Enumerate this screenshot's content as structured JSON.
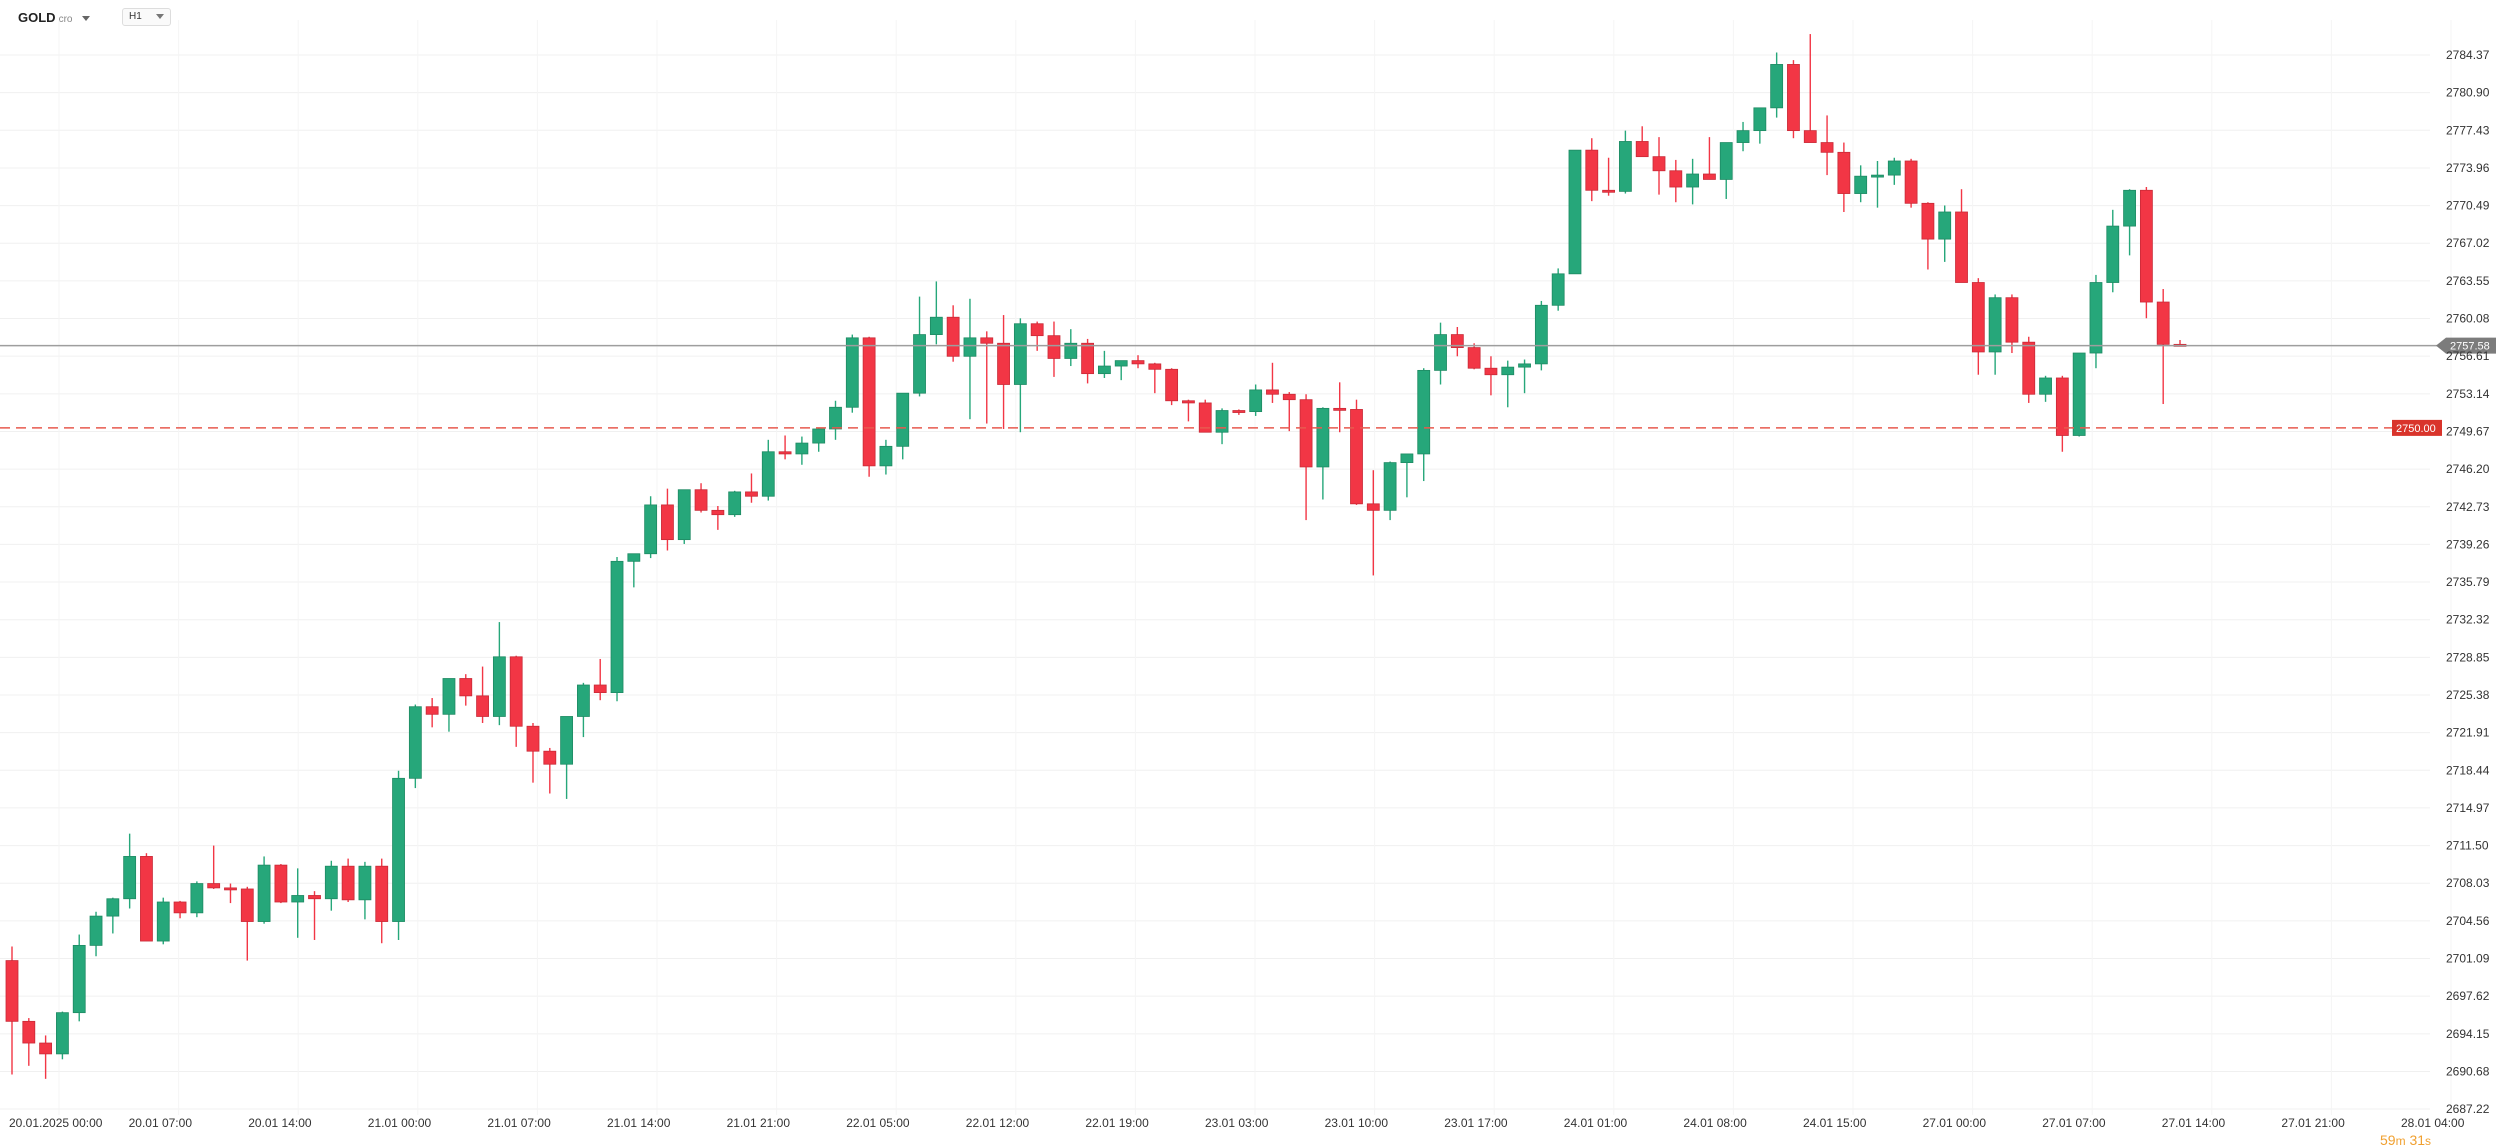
{
  "toolbar": {
    "symbol": "GOLD",
    "symbol_suffix": "cro",
    "timeframe": "H1"
  },
  "countdown": {
    "minutes": "59",
    "m": "m",
    "seconds": "31",
    "s": "s"
  },
  "price_tags": {
    "current": "2757.58",
    "order": "2750.00"
  },
  "colors": {
    "up": "#26a77a",
    "down": "#f23645",
    "grid": "#f0f0f0",
    "current_line": "#9e9e9e",
    "order_line": "#e85a4f",
    "order_tag": "#d9342b",
    "current_tag": "#7c7c7c",
    "countdown": "#f0a030"
  },
  "chart_data": {
    "type": "candlestick",
    "symbol": "GOLD",
    "timeframe": "H1",
    "y_ticks": [
      "2784.37",
      "2780.90",
      "2777.43",
      "2773.96",
      "2770.49",
      "2767.02",
      "2763.55",
      "2760.08",
      "2756.61",
      "2753.14",
      "2749.67",
      "2746.20",
      "2742.73",
      "2739.26",
      "2735.79",
      "2732.32",
      "2728.85",
      "2725.38",
      "2721.91",
      "2718.44",
      "2714.97",
      "2711.50",
      "2708.03",
      "2704.56",
      "2701.09",
      "2697.62",
      "2694.15",
      "2690.68",
      "2687.22"
    ],
    "ylim": [
      2687.22,
      2784.37
    ],
    "x_ticks": [
      "20.01.2025  00:00",
      "20.01  07:00",
      "20.01  14:00",
      "21.01  00:00",
      "21.01  07:00",
      "21.01  14:00",
      "21.01  21:00",
      "22.01  05:00",
      "22.01  12:00",
      "22.01  19:00",
      "23.01  03:00",
      "23.01  10:00",
      "23.01  17:00",
      "24.01  01:00",
      "24.01  08:00",
      "24.01  15:00",
      "27.01  00:00",
      "27.01  07:00",
      "27.01  14:00",
      "27.01  21:00",
      "28.01  04:00"
    ],
    "current_price": 2757.58,
    "order_level": 2750.0,
    "candles": [
      [
        2700.9,
        2702.2,
        2690.4,
        2695.3
      ],
      [
        2695.3,
        2695.6,
        2691.2,
        2693.3
      ],
      [
        2693.3,
        2694.0,
        2690.0,
        2692.3
      ],
      [
        2692.3,
        2696.2,
        2691.8,
        2696.1
      ],
      [
        2696.1,
        2703.3,
        2695.3,
        2702.3
      ],
      [
        2702.3,
        2705.4,
        2701.3,
        2705.0
      ],
      [
        2705.0,
        2706.7,
        2703.4,
        2706.6
      ],
      [
        2706.6,
        2712.6,
        2705.7,
        2710.5
      ],
      [
        2710.5,
        2710.8,
        2702.7,
        2702.7
      ],
      [
        2702.7,
        2706.7,
        2702.4,
        2706.3
      ],
      [
        2706.3,
        2706.4,
        2704.8,
        2705.3
      ],
      [
        2705.3,
        2708.2,
        2704.9,
        2708.0
      ],
      [
        2708.0,
        2711.5,
        2707.5,
        2707.6
      ],
      [
        2707.6,
        2708.0,
        2706.2,
        2707.5
      ],
      [
        2707.5,
        2707.7,
        2700.9,
        2704.5
      ],
      [
        2704.5,
        2710.5,
        2704.3,
        2709.7
      ],
      [
        2709.7,
        2709.8,
        2706.2,
        2706.3
      ],
      [
        2706.3,
        2709.4,
        2703.0,
        2706.9
      ],
      [
        2706.9,
        2707.3,
        2702.8,
        2706.6
      ],
      [
        2706.6,
        2710.1,
        2705.5,
        2709.6
      ],
      [
        2709.6,
        2710.3,
        2706.3,
        2706.5
      ],
      [
        2706.5,
        2710.0,
        2704.7,
        2709.6
      ],
      [
        2709.6,
        2710.3,
        2702.5,
        2704.5
      ],
      [
        2704.5,
        2718.4,
        2702.8,
        2717.7
      ],
      [
        2717.7,
        2724.5,
        2716.8,
        2724.3
      ],
      [
        2724.3,
        2725.1,
        2722.4,
        2723.6
      ],
      [
        2723.6,
        2726.9,
        2722.0,
        2726.9
      ],
      [
        2726.9,
        2727.3,
        2724.4,
        2725.3
      ],
      [
        2725.3,
        2728.0,
        2722.8,
        2723.4
      ],
      [
        2723.4,
        2732.1,
        2722.6,
        2728.9
      ],
      [
        2728.9,
        2729.0,
        2720.6,
        2722.5
      ],
      [
        2722.5,
        2722.8,
        2717.3,
        2720.2
      ],
      [
        2720.2,
        2720.5,
        2716.3,
        2719.0
      ],
      [
        2719.0,
        2723.3,
        2715.8,
        2723.4
      ],
      [
        2723.4,
        2726.5,
        2721.5,
        2726.3
      ],
      [
        2726.3,
        2728.7,
        2724.9,
        2725.6
      ],
      [
        2725.6,
        2738.1,
        2724.8,
        2737.7
      ],
      [
        2737.7,
        2738.2,
        2735.3,
        2738.4
      ],
      [
        2738.4,
        2743.7,
        2738.0,
        2742.9
      ],
      [
        2742.9,
        2744.4,
        2738.7,
        2739.7
      ],
      [
        2739.7,
        2744.3,
        2739.3,
        2744.3
      ],
      [
        2744.3,
        2744.9,
        2742.2,
        2742.4
      ],
      [
        2742.4,
        2742.8,
        2740.6,
        2742.0
      ],
      [
        2742.0,
        2744.2,
        2741.8,
        2744.1
      ],
      [
        2744.1,
        2745.8,
        2743.1,
        2743.7
      ],
      [
        2743.7,
        2748.9,
        2743.3,
        2747.8
      ],
      [
        2747.8,
        2749.3,
        2747.1,
        2747.6
      ],
      [
        2747.6,
        2749.2,
        2746.6,
        2748.6
      ],
      [
        2748.6,
        2750.0,
        2747.8,
        2749.9
      ],
      [
        2749.9,
        2752.5,
        2748.9,
        2751.9
      ],
      [
        2751.9,
        2758.6,
        2751.4,
        2758.3
      ],
      [
        2758.3,
        2758.4,
        2745.5,
        2746.5
      ],
      [
        2746.5,
        2748.9,
        2745.7,
        2748.3
      ],
      [
        2748.3,
        2753.2,
        2747.1,
        2753.2
      ],
      [
        2753.2,
        2762.1,
        2752.9,
        2758.6
      ],
      [
        2758.6,
        2763.5,
        2757.7,
        2760.2
      ],
      [
        2760.2,
        2761.3,
        2756.1,
        2756.6
      ],
      [
        2756.6,
        2761.9,
        2750.8,
        2758.3
      ],
      [
        2758.3,
        2758.9,
        2750.4,
        2757.8
      ],
      [
        2757.8,
        2760.4,
        2749.9,
        2754.0
      ],
      [
        2754.0,
        2760.1,
        2749.6,
        2759.6
      ],
      [
        2759.6,
        2759.8,
        2757.1,
        2758.5
      ],
      [
        2758.5,
        2759.8,
        2754.7,
        2756.4
      ],
      [
        2756.4,
        2759.1,
        2755.7,
        2757.8
      ],
      [
        2757.8,
        2758.2,
        2754.1,
        2755.0
      ],
      [
        2755.0,
        2757.1,
        2754.6,
        2755.7
      ],
      [
        2755.7,
        2756.2,
        2754.4,
        2756.2
      ],
      [
        2756.2,
        2756.7,
        2755.5,
        2755.9
      ],
      [
        2755.9,
        2756.0,
        2753.2,
        2755.4
      ],
      [
        2755.4,
        2755.5,
        2752.1,
        2752.5
      ],
      [
        2752.5,
        2752.6,
        2750.6,
        2752.3
      ],
      [
        2752.3,
        2752.6,
        2749.8,
        2749.6
      ],
      [
        2749.6,
        2751.8,
        2748.5,
        2751.6
      ],
      [
        2751.6,
        2751.7,
        2751.2,
        2751.5
      ],
      [
        2751.5,
        2754.0,
        2751.1,
        2753.5
      ],
      [
        2753.5,
        2756.0,
        2752.3,
        2753.1
      ],
      [
        2753.1,
        2753.3,
        2749.7,
        2752.6
      ],
      [
        2752.6,
        2753.1,
        2741.5,
        2746.4
      ],
      [
        2746.4,
        2751.9,
        2743.4,
        2751.8
      ],
      [
        2751.8,
        2754.2,
        2749.6,
        2751.7
      ],
      [
        2751.7,
        2752.6,
        2742.9,
        2743.0
      ],
      [
        2743.0,
        2746.1,
        2736.4,
        2742.4
      ],
      [
        2742.4,
        2746.9,
        2741.5,
        2746.8
      ],
      [
        2746.8,
        2747.5,
        2743.6,
        2747.6
      ],
      [
        2747.6,
        2755.5,
        2745.1,
        2755.3
      ],
      [
        2755.3,
        2759.7,
        2754.0,
        2758.6
      ],
      [
        2758.6,
        2759.3,
        2756.6,
        2757.4
      ],
      [
        2757.4,
        2757.8,
        2755.4,
        2755.5
      ],
      [
        2755.5,
        2756.6,
        2753.0,
        2754.9
      ],
      [
        2754.9,
        2756.2,
        2751.9,
        2755.6
      ],
      [
        2755.6,
        2756.3,
        2753.2,
        2755.9
      ],
      [
        2755.9,
        2761.7,
        2755.3,
        2761.3
      ],
      [
        2761.3,
        2764.7,
        2760.8,
        2764.2
      ],
      [
        2764.2,
        2775.1,
        2764.2,
        2775.6
      ],
      [
        2775.6,
        2776.7,
        2770.9,
        2771.9
      ],
      [
        2771.9,
        2774.9,
        2771.4,
        2771.8
      ],
      [
        2771.8,
        2777.4,
        2771.6,
        2776.4
      ],
      [
        2776.4,
        2777.8,
        2775.6,
        2775.0
      ],
      [
        2775.0,
        2776.8,
        2771.5,
        2773.7
      ],
      [
        2773.7,
        2774.7,
        2770.8,
        2772.2
      ],
      [
        2772.2,
        2774.8,
        2770.6,
        2773.4
      ],
      [
        2773.4,
        2776.8,
        2772.9,
        2772.9
      ],
      [
        2772.9,
        2776.1,
        2771.1,
        2776.3
      ],
      [
        2776.3,
        2778.2,
        2775.5,
        2777.4
      ],
      [
        2777.4,
        2779.5,
        2776.2,
        2779.5
      ],
      [
        2779.5,
        2784.6,
        2778.6,
        2783.5
      ],
      [
        2783.5,
        2783.9,
        2776.7,
        2777.4
      ],
      [
        2777.4,
        2786.3,
        2776.6,
        2776.3
      ],
      [
        2776.3,
        2778.8,
        2773.3,
        2775.4
      ],
      [
        2775.4,
        2776.3,
        2769.9,
        2771.6
      ],
      [
        2771.6,
        2774.2,
        2770.8,
        2773.2
      ],
      [
        2773.2,
        2774.6,
        2770.3,
        2773.3
      ],
      [
        2773.3,
        2774.9,
        2772.4,
        2774.6
      ],
      [
        2774.6,
        2774.8,
        2770.3,
        2770.7
      ],
      [
        2770.7,
        2770.8,
        2764.6,
        2767.4
      ],
      [
        2767.4,
        2770.5,
        2765.3,
        2769.9
      ],
      [
        2769.9,
        2772.0,
        2763.4,
        2763.4
      ],
      [
        2763.4,
        2763.8,
        2754.9,
        2757.0
      ],
      [
        2757.0,
        2762.3,
        2754.9,
        2762.0
      ],
      [
        2762.0,
        2762.3,
        2756.9,
        2757.9
      ],
      [
        2757.9,
        2758.4,
        2752.3,
        2753.1
      ],
      [
        2753.1,
        2754.8,
        2752.4,
        2754.6
      ],
      [
        2754.6,
        2754.8,
        2747.8,
        2749.3
      ],
      [
        2749.3,
        2756.1,
        2749.2,
        2756.9
      ],
      [
        2756.9,
        2764.1,
        2755.5,
        2763.4
      ],
      [
        2763.4,
        2770.1,
        2762.5,
        2768.6
      ],
      [
        2768.6,
        2772.0,
        2765.9,
        2771.9
      ],
      [
        2771.9,
        2772.2,
        2760.1,
        2761.6
      ],
      [
        2761.6,
        2762.8,
        2752.2,
        2757.7
      ],
      [
        2757.7,
        2758.1,
        2757.5,
        2757.58
      ]
    ]
  }
}
